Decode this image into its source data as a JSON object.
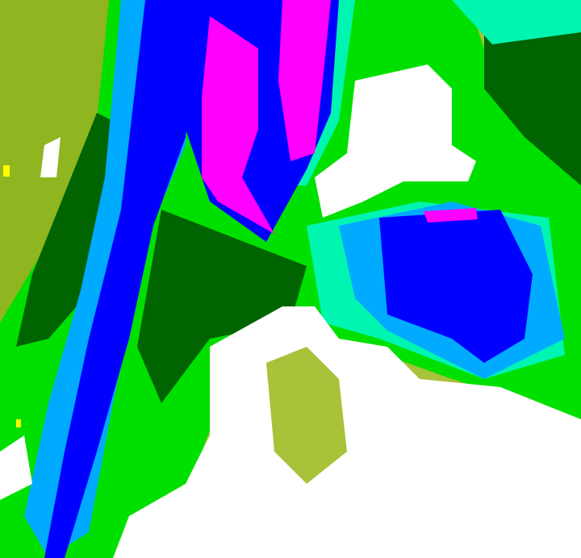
{
  "map": {
    "type": "classified-raster",
    "colors": {
      "olive": "#8fb521",
      "light_olive": "#a8c23a",
      "dark_green": "#006400",
      "green": "#00e000",
      "bright_green": "#33ff33",
      "aquamarine": "#00f5b0",
      "light_blue": "#00aaff",
      "blue": "#0000ff",
      "magenta": "#ff00ff",
      "yellow": "#ffff00",
      "white": "#ffffff"
    }
  }
}
